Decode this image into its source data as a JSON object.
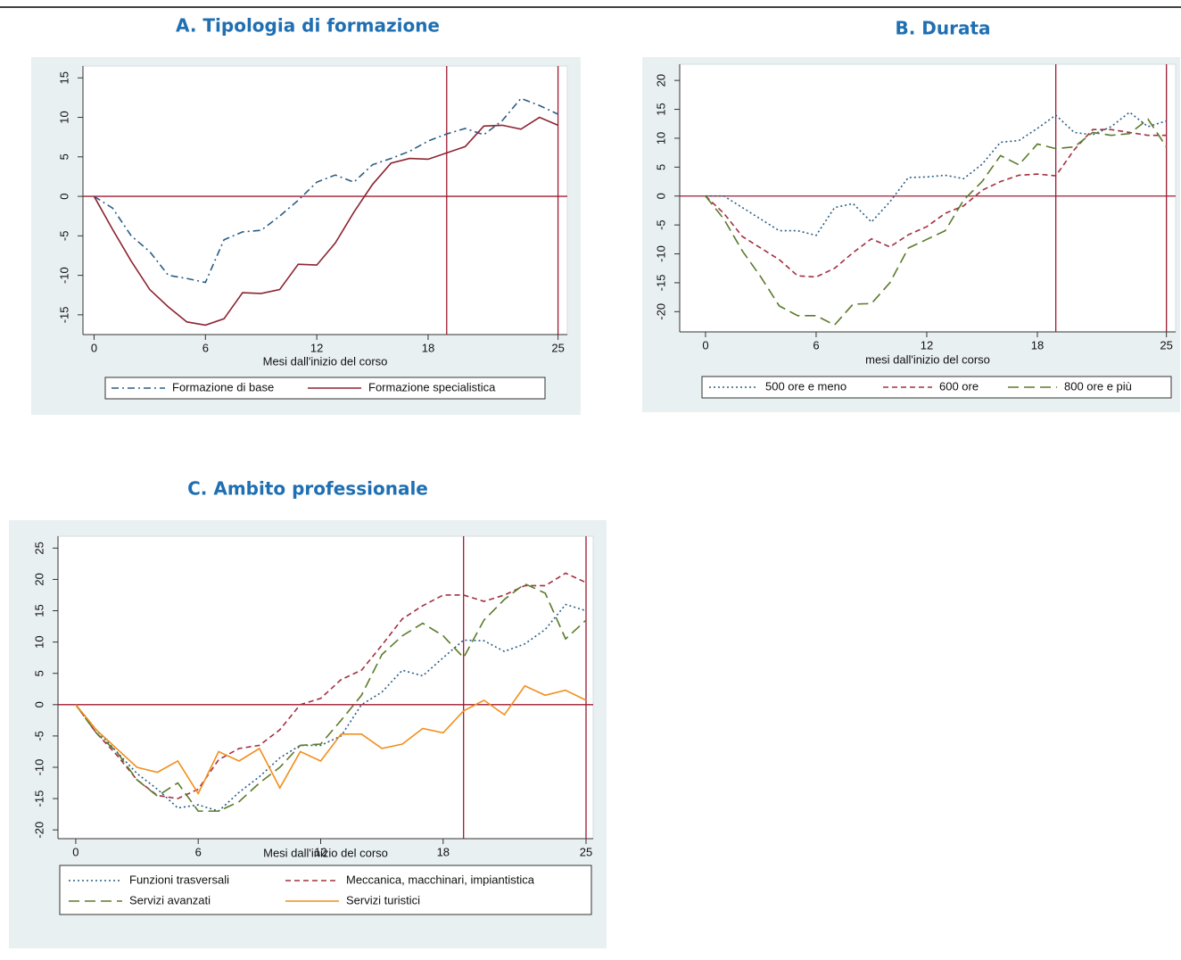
{
  "chart_data": [
    {
      "type": "line",
      "title": "A.  Tipologia di formazione",
      "xlabel": "Mesi dall'inizio del corso",
      "x": [
        0,
        1,
        2,
        3,
        4,
        5,
        6,
        7,
        8,
        9,
        10,
        11,
        12,
        13,
        14,
        15,
        16,
        17,
        18,
        19,
        20,
        21,
        22,
        23,
        24,
        25
      ],
      "xlim": [
        -0.6,
        25.5
      ],
      "ylim": [
        -17.5,
        16.5
      ],
      "xticks": [
        0,
        6,
        12,
        18,
        25
      ],
      "yticks": [
        15,
        10,
        5,
        0,
        -5,
        -10,
        -15
      ],
      "vlines": [
        19,
        25
      ],
      "hline": 0,
      "ref_color": "#9e1b32",
      "series": [
        {
          "name": "Formazione di base",
          "color": "#2a5d84",
          "dash": "8,4,2,4",
          "values": [
            0,
            -1.5,
            -5,
            -7,
            -10,
            -10.4,
            -10.9,
            -5.5,
            -4.5,
            -4.3,
            -2.5,
            -0.5,
            1.8,
            2.7,
            1.8,
            4,
            4.8,
            5.7,
            7,
            7.9,
            8.6,
            7.8,
            9.6,
            12.4,
            11.5,
            10.4
          ]
        },
        {
          "name": "Formazione specialistica",
          "color": "#8b2332",
          "dash": "none",
          "values": [
            0,
            -4.2,
            -8.2,
            -11.8,
            -14,
            -15.9,
            -16.3,
            -15.5,
            -12.2,
            -12.3,
            -11.8,
            -8.6,
            -8.7,
            -5.9,
            -2,
            1.5,
            4.2,
            4.8,
            4.7,
            5.5,
            6.3,
            8.9,
            9,
            8.5,
            10,
            9
          ]
        }
      ]
    },
    {
      "type": "line",
      "title": "B.  Durata",
      "xlabel": "mesi dall'inizio del corso",
      "x": [
        0,
        1,
        2,
        3,
        4,
        5,
        6,
        7,
        8,
        9,
        10,
        11,
        12,
        13,
        14,
        15,
        16,
        17,
        18,
        19,
        20,
        21,
        22,
        23,
        24,
        25
      ],
      "xlim": [
        -1.4,
        25.5
      ],
      "ylim": [
        -23.5,
        22.8
      ],
      "xticks": [
        0,
        6,
        12,
        18,
        25
      ],
      "yticks": [
        20,
        15,
        10,
        5,
        0,
        -5,
        -10,
        -15,
        -20
      ],
      "vlines": [
        19,
        25
      ],
      "hline": 0,
      "ref_color": "#9e1b32",
      "series": [
        {
          "name": "500 ore e meno",
          "color": "#2a5d84",
          "dash": "2,3",
          "values": [
            0,
            0,
            -2,
            -4,
            -6,
            -6,
            -6.8,
            -2,
            -1.3,
            -4.5,
            -1,
            3.2,
            3.3,
            3.6,
            3,
            5.5,
            9.3,
            9.6,
            11.7,
            14,
            11,
            10.6,
            12,
            14.5,
            12,
            13
          ]
        },
        {
          "name": "600 ore",
          "color": "#a3303f",
          "dash": "6,4",
          "values": [
            0,
            -3,
            -7,
            -9,
            -11,
            -13.8,
            -14,
            -12.5,
            -9.8,
            -7.4,
            -8.8,
            -6.7,
            -5.3,
            -3,
            -1.7,
            1,
            2.5,
            3.6,
            3.8,
            3.5,
            8,
            11.5,
            11.5,
            11,
            10.5,
            10.5
          ]
        },
        {
          "name": "800 ore e più",
          "color": "#5a7a2a",
          "dash": "12,6",
          "values": [
            0,
            -4,
            -9.5,
            -14,
            -19,
            -20.7,
            -20.7,
            -22.3,
            -18.7,
            -18.6,
            -15,
            -9,
            -7.5,
            -6,
            -0.7,
            2.5,
            7,
            5.4,
            9,
            8.2,
            8.5,
            11,
            10.5,
            10.8,
            13.3,
            8.5
          ]
        }
      ]
    },
    {
      "type": "line",
      "title": "C.  Ambito professionale",
      "xlabel": "Mesi dall'inizio del corso",
      "x": [
        0,
        1,
        2,
        3,
        4,
        5,
        6,
        7,
        8,
        9,
        10,
        11,
        12,
        13,
        14,
        15,
        16,
        17,
        18,
        19,
        20,
        21,
        22,
        23,
        24,
        25
      ],
      "xlim": [
        -0.87,
        25.35
      ],
      "ylim": [
        -21.4,
        26.9
      ],
      "xticks": [
        0,
        6,
        12,
        18,
        25
      ],
      "yticks": [
        25,
        20,
        15,
        10,
        5,
        0,
        -5,
        -10,
        -15,
        -20
      ],
      "vlines": [
        19,
        25
      ],
      "hline": 0,
      "ref_color": "#9e1b32",
      "series": [
        {
          "name": "Funzioni trasversali",
          "color": "#2a5d84",
          "dash": "2,3",
          "values": [
            0,
            -4,
            -7.5,
            -11,
            -13.5,
            -16.5,
            -16,
            -17,
            -14,
            -11.5,
            -8.5,
            -6.5,
            -6.5,
            -5,
            0,
            2,
            5.5,
            4.6,
            7.5,
            10.3,
            10.2,
            8.5,
            9.7,
            12,
            16,
            15
          ]
        },
        {
          "name": "Meccanica, macchinari, impiantistica",
          "color": "#a3303f",
          "dash": "6,4",
          "values": [
            0,
            -4.5,
            -8,
            -12,
            -14.5,
            -15,
            -13.5,
            -8.8,
            -7,
            -6.5,
            -4,
            0,
            1,
            4,
            5.5,
            9.5,
            13.7,
            15.8,
            17.5,
            17.5,
            16.5,
            17.5,
            19,
            19,
            21,
            19.5
          ]
        },
        {
          "name": "Servizi avanzati",
          "color": "#5a7a2a",
          "dash": "12,6",
          "values": [
            0,
            -4.5,
            -7.5,
            -12,
            -14.6,
            -12.5,
            -17,
            -17,
            -15.5,
            -12.5,
            -10,
            -6.5,
            -6.3,
            -2.5,
            1.5,
            8,
            11,
            13,
            11,
            7.5,
            13.5,
            16.8,
            19.3,
            17.8,
            10.5,
            13.5
          ]
        },
        {
          "name": "Servizi turistici",
          "color": "#f28e1c",
          "dash": "none",
          "values": [
            0,
            -4,
            -7,
            -10,
            -10.8,
            -9,
            -14.2,
            -7.5,
            -9,
            -7,
            -13.3,
            -7.5,
            -9,
            -4.7,
            -4.7,
            -7,
            -6.3,
            -3.8,
            -4.5,
            -1,
            0.7,
            -1.6,
            3,
            1.5,
            2.3,
            0.7
          ]
        }
      ]
    }
  ]
}
